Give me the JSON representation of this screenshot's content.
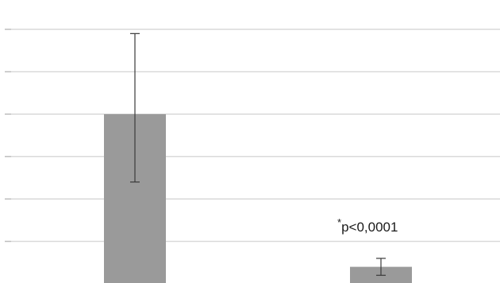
{
  "chart_data": {
    "type": "bar",
    "categories": [
      "",
      ""
    ],
    "values": [
      4.0,
      0.4
    ],
    "error_low": [
      2.4,
      0.2
    ],
    "error_high": [
      5.9,
      0.6
    ],
    "ylim": [
      0,
      6
    ],
    "grid": true,
    "xlabel": "",
    "ylabel": "",
    "bar_color": "#9a9a9a",
    "gridline_color": "#d9d9d9",
    "errorbar_color": "#3a3a3a",
    "annotations": [
      {
        "star": "*",
        "text": "p<0,0001",
        "target_index": 1
      }
    ]
  }
}
